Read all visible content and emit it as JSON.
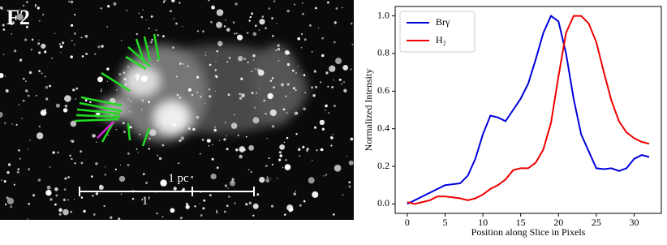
{
  "panel_label": "F2",
  "scale_bars": [
    "1 pc",
    "1'"
  ],
  "chart_data": {
    "type": "line",
    "x_label": "Position along Slice in Pixels",
    "y_label": "Normalized Intensity",
    "x": [
      0,
      1,
      2,
      3,
      4,
      5,
      6,
      7,
      8,
      9,
      10,
      11,
      12,
      13,
      14,
      15,
      16,
      17,
      18,
      19,
      20,
      21,
      22,
      23,
      24,
      25,
      26,
      27,
      28,
      29,
      30,
      31,
      32
    ],
    "series": [
      {
        "name": "Brγ",
        "color": "#0000dd",
        "values": [
          0.0,
          0.02,
          0.04,
          0.06,
          0.08,
          0.1,
          0.105,
          0.11,
          0.15,
          0.24,
          0.37,
          0.47,
          0.46,
          0.44,
          0.5,
          0.56,
          0.64,
          0.77,
          0.91,
          1.0,
          0.97,
          0.8,
          0.56,
          0.37,
          0.28,
          0.19,
          0.185,
          0.19,
          0.175,
          0.19,
          0.24,
          0.26,
          0.25
        ]
      },
      {
        "name": "H₂",
        "color": "#ee0000",
        "values": [
          0.01,
          0.0,
          0.01,
          0.02,
          0.04,
          0.04,
          0.035,
          0.03,
          0.02,
          0.03,
          0.05,
          0.08,
          0.1,
          0.13,
          0.18,
          0.19,
          0.19,
          0.22,
          0.29,
          0.43,
          0.68,
          0.91,
          1.0,
          1.0,
          0.96,
          0.86,
          0.7,
          0.55,
          0.44,
          0.38,
          0.35,
          0.33,
          0.32
        ]
      }
    ],
    "xlim": [
      -1.6,
      33.6
    ],
    "ylim": [
      -0.05,
      1.05
    ],
    "xticks": [
      0,
      5,
      10,
      15,
      20,
      25,
      30
    ],
    "yticks": [
      {
        "value": 0,
        "label": "0.0"
      },
      {
        "value": 0.2,
        "label": "0.2"
      },
      {
        "value": 0.4,
        "label": "0.4"
      },
      {
        "value": 0.6,
        "label": "0.6"
      },
      {
        "value": 0.8,
        "label": "0.8"
      },
      {
        "value": 1,
        "label": "1.0"
      }
    ],
    "legend": "upper left"
  }
}
